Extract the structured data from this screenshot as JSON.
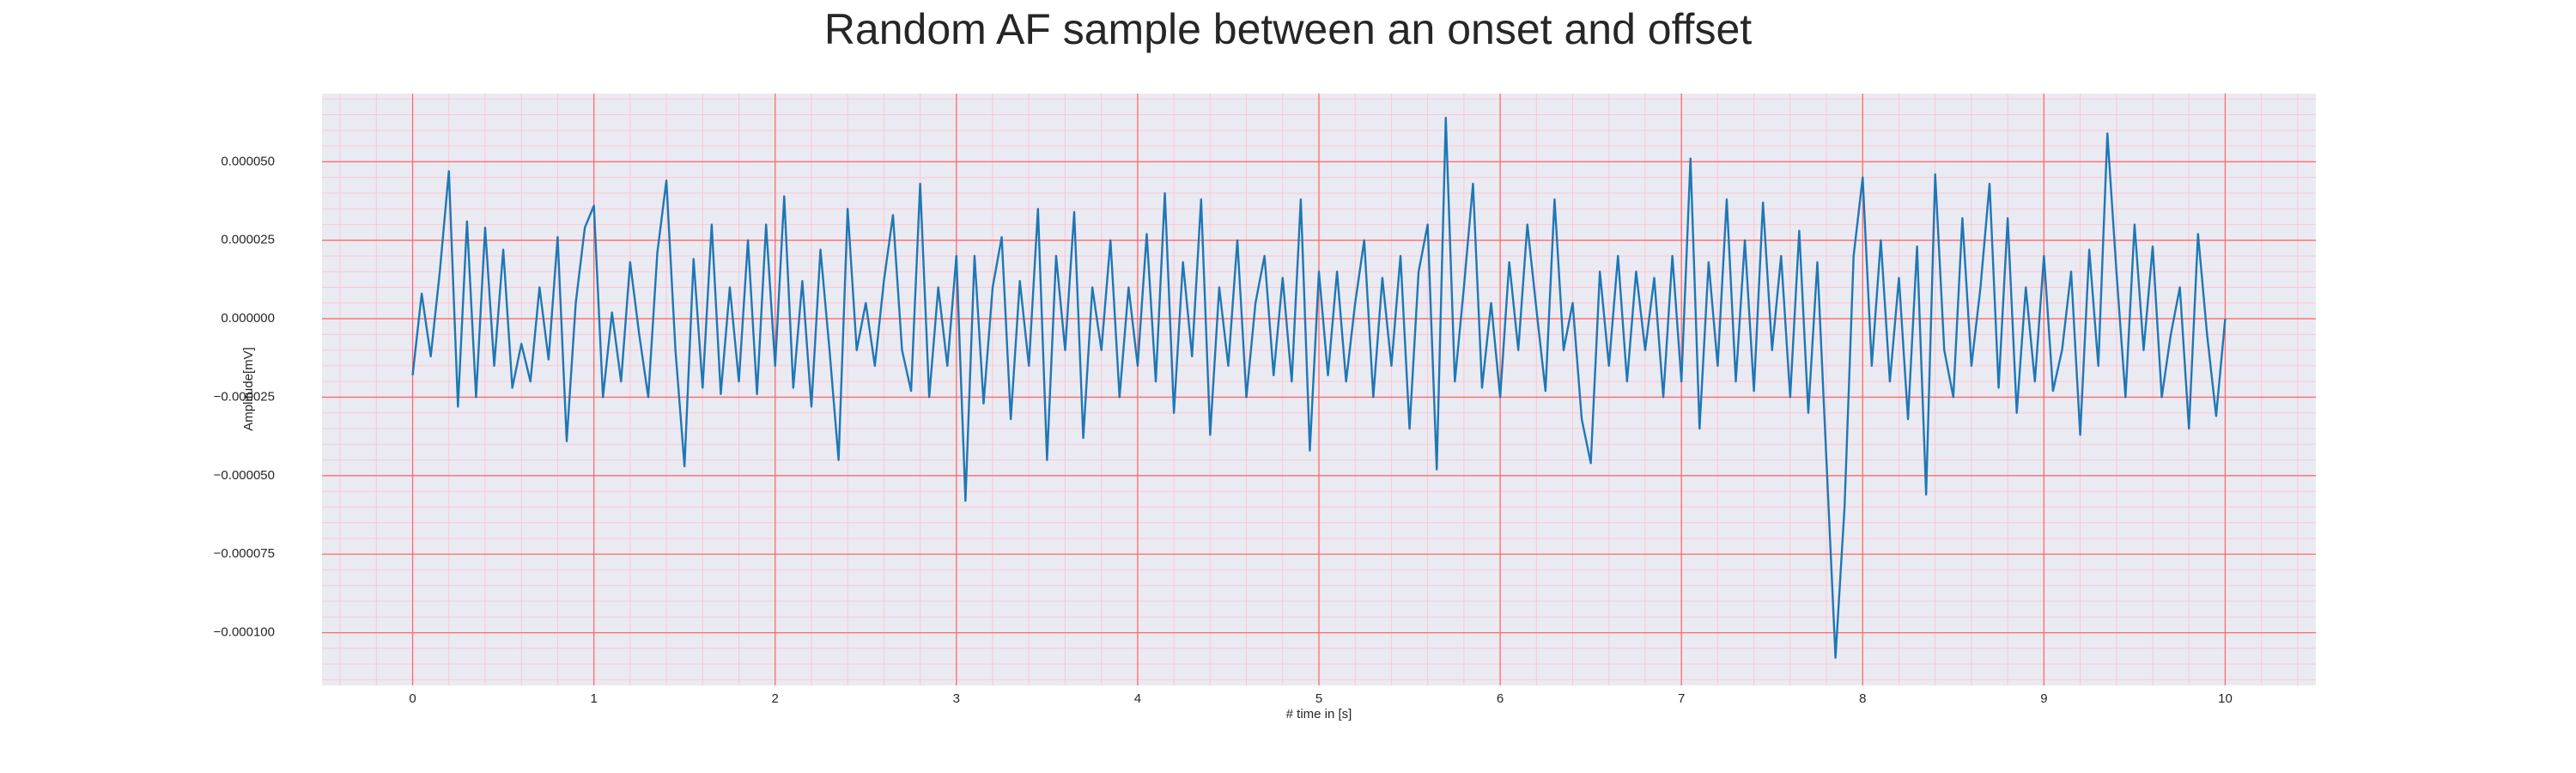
{
  "chart_data": {
    "type": "line",
    "title": "Random AF sample between an onset and offset",
    "x_label": "# time in [s]",
    "y_label": "Amplitude[mV]",
    "xlim": [
      -0.5,
      10.5
    ],
    "xticks": [
      0,
      1,
      2,
      3,
      4,
      5,
      6,
      7,
      8,
      9,
      10
    ],
    "ylim": [
      -0.0001168,
      7.17e-05
    ],
    "yticks": [
      {
        "value": -0.0001,
        "label": "−0.000100"
      },
      {
        "value": -7.5e-05,
        "label": "−0.000075"
      },
      {
        "value": -5e-05,
        "label": "−0.000050"
      },
      {
        "value": -2.5e-05,
        "label": "−0.000025"
      },
      {
        "value": 0,
        "label": "0.000000"
      },
      {
        "value": 2.5e-05,
        "label": "0.000025"
      },
      {
        "value": 5e-05,
        "label": "0.000050"
      }
    ],
    "grid": true,
    "minor_grid": true,
    "grid_color": "#ff6b6b",
    "background": "#eaeaf2",
    "x": [
      0,
      0.05,
      0.1,
      0.15,
      0.2,
      0.25,
      0.3,
      0.35,
      0.4,
      0.45,
      0.5,
      0.55,
      0.6,
      0.65,
      0.7,
      0.75,
      0.8,
      0.85,
      0.9,
      0.95,
      1,
      1.05,
      1.1,
      1.15,
      1.2,
      1.25,
      1.3,
      1.35,
      1.4,
      1.45,
      1.5,
      1.55,
      1.6,
      1.65,
      1.7,
      1.75,
      1.8,
      1.85,
      1.9,
      1.95,
      2,
      2.05,
      2.1,
      2.15,
      2.2,
      2.25,
      2.3,
      2.35,
      2.4,
      2.45,
      2.5,
      2.55,
      2.6,
      2.65,
      2.7,
      2.75,
      2.8,
      2.85,
      2.9,
      2.95,
      3,
      3.05,
      3.1,
      3.15,
      3.2,
      3.25,
      3.3,
      3.35,
      3.4,
      3.45,
      3.5,
      3.55,
      3.6,
      3.65,
      3.7,
      3.75,
      3.8,
      3.85,
      3.9,
      3.95,
      4,
      4.05,
      4.1,
      4.15,
      4.2,
      4.25,
      4.3,
      4.35,
      4.4,
      4.45,
      4.5,
      4.55,
      4.6,
      4.65,
      4.7,
      4.75,
      4.8,
      4.85,
      4.9,
      4.95,
      5,
      5.05,
      5.1,
      5.15,
      5.2,
      5.25,
      5.3,
      5.35,
      5.4,
      5.45,
      5.5,
      5.55,
      5.6,
      5.65,
      5.7,
      5.75,
      5.8,
      5.85,
      5.9,
      5.95,
      6,
      6.05,
      6.1,
      6.15,
      6.2,
      6.25,
      6.3,
      6.35,
      6.4,
      6.45,
      6.5,
      6.55,
      6.6,
      6.65,
      6.7,
      6.75,
      6.8,
      6.85,
      6.9,
      6.95,
      7,
      7.05,
      7.1,
      7.15,
      7.2,
      7.25,
      7.3,
      7.35,
      7.4,
      7.45,
      7.5,
      7.55,
      7.6,
      7.65,
      7.7,
      7.75,
      7.8,
      7.85,
      7.9,
      7.95,
      8,
      8.05,
      8.1,
      8.15,
      8.2,
      8.25,
      8.3,
      8.35,
      8.4,
      8.45,
      8.5,
      8.55,
      8.6,
      8.65,
      8.7,
      8.75,
      8.8,
      8.85,
      8.9,
      8.95,
      9,
      9.05,
      9.1,
      9.15,
      9.2,
      9.25,
      9.3,
      9.35,
      9.4,
      9.45,
      9.5,
      9.55,
      9.6,
      9.65,
      9.7,
      9.75,
      9.8,
      9.85,
      9.9,
      9.95,
      10
    ],
    "series": [
      {
        "name": "signal",
        "color": "#1f77b4",
        "values": [
          -1.8e-05,
          8e-06,
          -1.2e-05,
          1.5e-05,
          4.7e-05,
          -2.8e-05,
          3.1e-05,
          -2.5e-05,
          2.9e-05,
          -1.5e-05,
          2.2e-05,
          -2.2e-05,
          -8e-06,
          -2e-05,
          1e-05,
          -1.3e-05,
          2.6e-05,
          -3.9e-05,
          5e-06,
          2.9e-05,
          3.6e-05,
          -2.5e-05,
          2e-06,
          -2e-05,
          1.8e-05,
          -5e-06,
          -2.5e-05,
          2.1e-05,
          4.4e-05,
          -1e-05,
          -4.7e-05,
          1.9e-05,
          -2.2e-05,
          3e-05,
          -2.4e-05,
          1e-05,
          -2e-05,
          2.5e-05,
          -2.4e-05,
          3e-05,
          -1.5e-05,
          3.9e-05,
          -2.2e-05,
          1.2e-05,
          -2.8e-05,
          2.2e-05,
          -1e-05,
          -4.5e-05,
          3.5e-05,
          -1e-05,
          5e-06,
          -1.5e-05,
          1.2e-05,
          3.3e-05,
          -1e-05,
          -2.3e-05,
          4.3e-05,
          -2.5e-05,
          1e-05,
          -1.5e-05,
          2e-05,
          -5.8e-05,
          2e-05,
          -2.7e-05,
          1e-05,
          2.6e-05,
          -3.2e-05,
          1.2e-05,
          -1.5e-05,
          3.5e-05,
          -4.5e-05,
          2e-05,
          -1e-05,
          3.4e-05,
          -3.8e-05,
          1e-05,
          -1e-05,
          2.5e-05,
          -2.5e-05,
          1e-05,
          -1.5e-05,
          2.7e-05,
          -2e-05,
          4e-05,
          -3e-05,
          1.8e-05,
          -1.2e-05,
          3.8e-05,
          -3.7e-05,
          1e-05,
          -1.5e-05,
          2.5e-05,
          -2.5e-05,
          5e-06,
          2e-05,
          -1.8e-05,
          1.3e-05,
          -2e-05,
          3.8e-05,
          -4.2e-05,
          1.5e-05,
          -1.8e-05,
          1.5e-05,
          -2e-05,
          5e-06,
          2.5e-05,
          -2.5e-05,
          1.3e-05,
          -1.5e-05,
          2e-05,
          -3.5e-05,
          1.5e-05,
          3e-05,
          -4.8e-05,
          6.4e-05,
          -2e-05,
          1e-05,
          4.3e-05,
          -2.2e-05,
          5e-06,
          -2.5e-05,
          1.8e-05,
          -1e-05,
          3e-05,
          3e-06,
          -2.3e-05,
          3.8e-05,
          -1e-05,
          5e-06,
          -3.2e-05,
          -4.6e-05,
          1.5e-05,
          -1.5e-05,
          2e-05,
          -2e-05,
          1.5e-05,
          -1e-05,
          1.3e-05,
          -2.5e-05,
          2e-05,
          -2e-05,
          5.1e-05,
          -3.5e-05,
          1.8e-05,
          -1.5e-05,
          3.8e-05,
          -2e-05,
          2.5e-05,
          -2.3e-05,
          3.7e-05,
          -1e-05,
          2e-05,
          -2.5e-05,
          2.8e-05,
          -3e-05,
          1.8e-05,
          -4.5e-05,
          -0.000108,
          -6e-05,
          2e-05,
          4.5e-05,
          -1.5e-05,
          2.5e-05,
          -2e-05,
          1.3e-05,
          -3.2e-05,
          2.3e-05,
          -5.6e-05,
          4.6e-05,
          -1e-05,
          -2.5e-05,
          3.2e-05,
          -1.5e-05,
          1e-05,
          4.3e-05,
          -2.2e-05,
          3.2e-05,
          -3e-05,
          1e-05,
          -2e-05,
          2e-05,
          -2.3e-05,
          -1e-05,
          1.5e-05,
          -3.7e-05,
          2.2e-05,
          -1.5e-05,
          5.9e-05,
          1.5e-05,
          -2.5e-05,
          3e-05,
          -1e-05,
          2.3e-05,
          -2.5e-05,
          -5e-06,
          1e-05,
          -3.5e-05,
          2.7e-05,
          -5e-06,
          -3.1e-05,
          0
        ]
      }
    ]
  }
}
